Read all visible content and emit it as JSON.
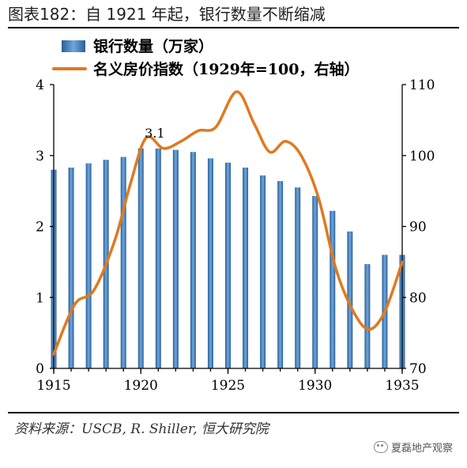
{
  "title": "图表182：自 1921 年起，银行数量不断缩减",
  "source": "资料来源：USCB, R. Shiller, 恒大研究院",
  "watermark": "夏磊地产观察",
  "colors": {
    "bar": "#3d7fc0",
    "bar_dark": "#2a5f98",
    "line": "#e0791f",
    "axis": "#000000"
  },
  "chart_data": {
    "type": "bar+line",
    "title": "",
    "x": [
      1915,
      1916,
      1917,
      1918,
      1919,
      1920,
      1921,
      1922,
      1923,
      1924,
      1925,
      1926,
      1927,
      1928,
      1929,
      1930,
      1931,
      1932,
      1933,
      1934,
      1935
    ],
    "x_ticks": [
      1915,
      1920,
      1925,
      1930,
      1935
    ],
    "x_tick_labels": [
      "1915",
      "1920",
      "1925",
      "1930",
      "1935"
    ],
    "series": [
      {
        "name": "银行数量（万家）",
        "type": "bar",
        "axis": "left",
        "values": [
          2.8,
          2.83,
          2.89,
          2.94,
          2.98,
          3.1,
          3.1,
          3.08,
          3.05,
          2.96,
          2.9,
          2.83,
          2.72,
          2.64,
          2.55,
          2.43,
          2.22,
          1.93,
          1.47,
          1.6,
          1.6
        ]
      },
      {
        "name": "名义房价指数（1929年=100，右轴）",
        "type": "line",
        "axis": "right",
        "smooth": true,
        "points": [
          [
            1915.0,
            72
          ],
          [
            1916.2,
            79
          ],
          [
            1917.3,
            81
          ],
          [
            1918.5,
            88
          ],
          [
            1919.4,
            96
          ],
          [
            1920.3,
            102.5
          ],
          [
            1921.3,
            101
          ],
          [
            1922.3,
            102
          ],
          [
            1923.3,
            103.5
          ],
          [
            1924.3,
            104
          ],
          [
            1925.5,
            109
          ],
          [
            1926.5,
            104.5
          ],
          [
            1927.4,
            100.5
          ],
          [
            1928.3,
            102
          ],
          [
            1929.2,
            100
          ],
          [
            1930.2,
            94
          ],
          [
            1931.2,
            84
          ],
          [
            1932.2,
            78
          ],
          [
            1933.1,
            75.5
          ],
          [
            1934.0,
            78
          ],
          [
            1935.0,
            85
          ]
        ]
      }
    ],
    "y_left": {
      "min": 0,
      "max": 4,
      "ticks": [
        0,
        1,
        2,
        3,
        4
      ],
      "tick_labels": [
        "0",
        "1",
        "2",
        "3",
        "4"
      ]
    },
    "y_right": {
      "min": 70,
      "max": 110,
      "ticks": [
        70,
        80,
        90,
        100,
        110
      ],
      "tick_labels": [
        "70",
        "80",
        "90",
        "100",
        "110"
      ]
    },
    "annotations": [
      {
        "text": "3.1",
        "x": 1920.8,
        "y": 3.1
      }
    ],
    "legend": {
      "placement": "top-left"
    },
    "grid": false
  }
}
